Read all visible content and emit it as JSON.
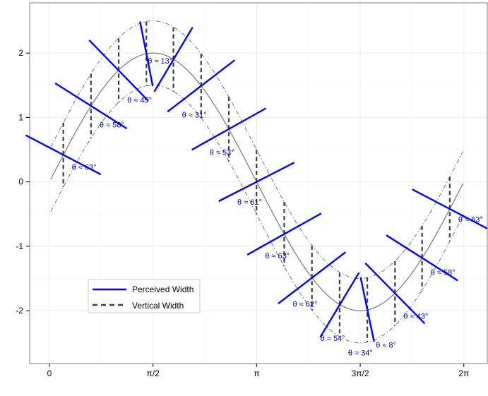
{
  "chart_data": {
    "type": "line",
    "x_ticks": [
      {
        "value": 0,
        "label": "0"
      },
      {
        "value": 1.5708,
        "label": "π/2"
      },
      {
        "value": 3.1416,
        "label": "π"
      },
      {
        "value": 4.7124,
        "label": "3π/2"
      },
      {
        "value": 6.2832,
        "label": "2π"
      }
    ],
    "y_ticks": [
      {
        "value": -2,
        "label": "-2"
      },
      {
        "value": -1,
        "label": "-1"
      },
      {
        "value": 0,
        "label": "0"
      },
      {
        "value": 1,
        "label": "1"
      },
      {
        "value": 2,
        "label": "2"
      }
    ],
    "xlim": [
      -0.3,
      6.65
    ],
    "ylim": [
      -2.82,
      2.78
    ],
    "curve": {
      "function": "2*sin(x)",
      "x_range": [
        0.02,
        6.27
      ],
      "color": "#808080"
    },
    "band_offset": 0.5,
    "band_color": "#808080",
    "grid": true,
    "series": [
      {
        "name": "Perceived Width",
        "color": "#0000ff",
        "style": "solid"
      },
      {
        "name": "Vertical Width",
        "color": "#404040",
        "style": "dashed"
      }
    ],
    "vertical_segments": [
      {
        "x": 0.21,
        "y_top": 0.92,
        "y_bottom": -0.08
      },
      {
        "x": 0.63,
        "y_top": 1.68,
        "y_bottom": 0.68
      },
      {
        "x": 1.05,
        "y_top": 2.23,
        "y_bottom": 1.23
      },
      {
        "x": 1.47,
        "y_top": 2.49,
        "y_bottom": 1.49
      },
      {
        "x": 1.88,
        "y_top": 2.4,
        "y_bottom": 1.4
      },
      {
        "x": 2.3,
        "y_top": 1.99,
        "y_bottom": 0.99
      },
      {
        "x": 2.72,
        "y_top": 1.32,
        "y_bottom": 0.32
      },
      {
        "x": 3.14,
        "y_top": 0.5,
        "y_bottom": -0.5
      },
      {
        "x": 3.56,
        "y_top": -0.31,
        "y_bottom": -1.31
      },
      {
        "x": 3.98,
        "y_top": -0.99,
        "y_bottom": -1.99
      },
      {
        "x": 4.4,
        "y_top": -1.41,
        "y_bottom": -2.41
      },
      {
        "x": 4.82,
        "y_top": -1.48,
        "y_bottom": -2.48
      },
      {
        "x": 5.24,
        "y_top": -1.23,
        "y_bottom": -2.23
      },
      {
        "x": 5.65,
        "y_top": -0.68,
        "y_bottom": -1.68
      },
      {
        "x": 6.07,
        "y_top": 0.08,
        "y_bottom": -0.92
      }
    ],
    "perceived_segments": [
      {
        "x": 0.21,
        "y": 0.42,
        "theta": "θ ≈ 63°"
      },
      {
        "x": 0.63,
        "y": 1.18,
        "theta": "θ ≈ 58°"
      },
      {
        "x": 1.05,
        "y": 1.73,
        "theta": "θ ≈ 45°"
      },
      {
        "x": 1.47,
        "y": 1.99,
        "theta": "θ ≈ 13°"
      },
      {
        "x": 1.88,
        "y": 1.9,
        "theta": "θ ≈ 31°"
      },
      {
        "x": 2.3,
        "y": 1.49,
        "theta": "θ ≈ 53°"
      },
      {
        "x": 2.72,
        "y": 0.82,
        "theta": "θ ≈ 61°"
      },
      {
        "x": 3.14,
        "y": 0.0,
        "theta": "θ ≈ 63°"
      },
      {
        "x": 3.56,
        "y": -0.81,
        "theta": "θ ≈ 62°"
      },
      {
        "x": 3.98,
        "y": -1.49,
        "theta": "θ ≈ 54°"
      },
      {
        "x": 4.4,
        "y": -1.91,
        "theta": "θ ≈ 34°"
      },
      {
        "x": 4.82,
        "y": -1.98,
        "theta": "θ ≈ 8°"
      },
      {
        "x": 5.24,
        "y": -1.73,
        "theta": "θ ≈ 43°"
      },
      {
        "x": 5.65,
        "y": -1.18,
        "theta": "θ ≈ 58°"
      },
      {
        "x": 6.07,
        "y": -0.42,
        "theta": "θ ≈ 63°"
      }
    ],
    "legend": {
      "placement": "bottom-left",
      "entries": [
        "Perceived Width",
        "Vertical Width"
      ]
    }
  }
}
